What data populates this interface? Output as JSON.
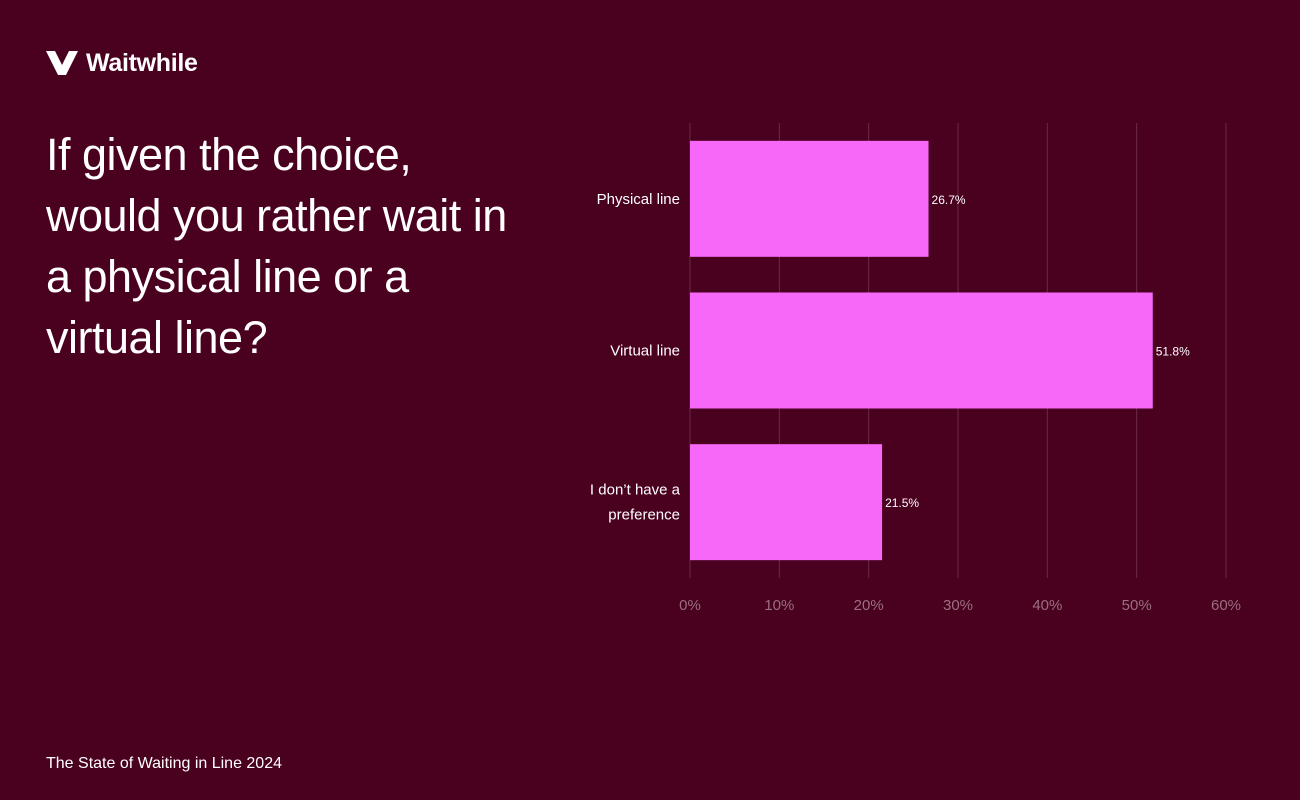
{
  "brand": {
    "name": "Waitwhile",
    "logo_icon": "waitwhile-w-logo-icon"
  },
  "headline": "If given the choice, would you rather wait in a physical line or a virtual line?",
  "footer": "The State of Waiting in Line 2024",
  "colors": {
    "background": "#4a001f",
    "bar": "#f768f9",
    "grid": "#6a2a45",
    "tick_text": "#9a6f80",
    "text": "#ffffff"
  },
  "chart_data": {
    "type": "bar",
    "orientation": "horizontal",
    "categories": [
      [
        "Physical line"
      ],
      [
        "Virtual line"
      ],
      [
        "I don’t have a",
        "preference"
      ]
    ],
    "values": [
      26.7,
      51.8,
      21.5
    ],
    "value_labels": [
      "26.7%",
      "51.8%",
      "21.5%"
    ],
    "xlim": [
      0,
      60
    ],
    "xticks": [
      0,
      10,
      20,
      30,
      40,
      50,
      60
    ],
    "xtick_labels": [
      "0%",
      "10%",
      "20%",
      "30%",
      "40%",
      "50%",
      "60%"
    ],
    "grid": true,
    "legend": "none"
  }
}
